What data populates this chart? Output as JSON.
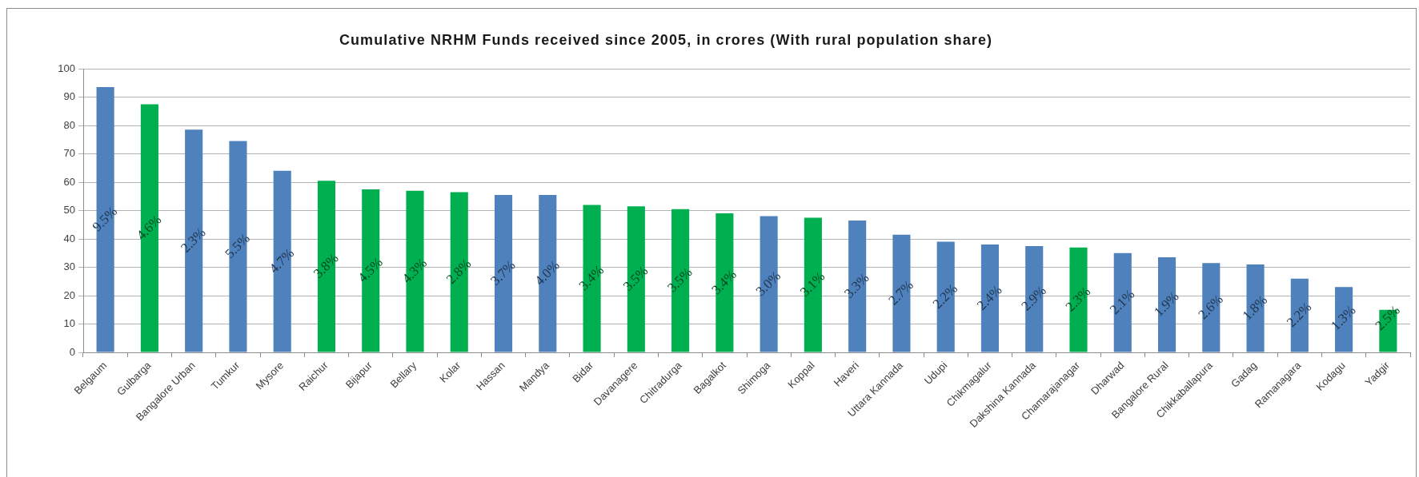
{
  "chart_data": {
    "type": "bar",
    "title": "Cumulative NRHM Funds received since 2005, in crores (With rural population share)",
    "categories": [
      "Belgaum",
      "Gulbarga",
      "Bangalore Urban",
      "Tumkur",
      "Mysore",
      "Raichur",
      "Bijapur",
      "Bellary",
      "Kolar",
      "Hassan",
      "Mandya",
      "Bidar",
      "Davanagere",
      "Chitradurga",
      "Bagalkot",
      "Shimoga",
      "Koppal",
      "Haveri",
      "Uttara Kannada",
      "Udupi",
      "Chikmagalur",
      "Dakshina Kannada",
      "Chamarajanagar",
      "Dharwad",
      "Bangalore Rural",
      "Chikkaballapura",
      "Gadag",
      "Ramanagara",
      "Kodagu",
      "Yadgir"
    ],
    "values": [
      93.5,
      87.5,
      78.5,
      74.5,
      64,
      60.5,
      57.5,
      57,
      56.5,
      55.5,
      55.5,
      52,
      51.5,
      50.5,
      49,
      48,
      47.5,
      46.5,
      41.5,
      39,
      38,
      37.5,
      37,
      35,
      33.5,
      31.5,
      31,
      26,
      23,
      15
    ],
    "colors": [
      "#4f81bd",
      "#00b050",
      "#4f81bd",
      "#4f81bd",
      "#4f81bd",
      "#00b050",
      "#00b050",
      "#00b050",
      "#00b050",
      "#4f81bd",
      "#4f81bd",
      "#00b050",
      "#00b050",
      "#00b050",
      "#00b050",
      "#4f81bd",
      "#00b050",
      "#4f81bd",
      "#4f81bd",
      "#4f81bd",
      "#4f81bd",
      "#4f81bd",
      "#00b050",
      "#4f81bd",
      "#4f81bd",
      "#4f81bd",
      "#4f81bd",
      "#4f81bd",
      "#4f81bd",
      "#00b050"
    ],
    "annotations": [
      "9.5%",
      "4.6%",
      "2.3%",
      "5.5%",
      "4.7%",
      "3.8%",
      "4.5%",
      "4.3%",
      "2.8%",
      "3.7%",
      "4.0%",
      "3.4%",
      "3.5%",
      "3.5%",
      "3.4%",
      "3.0%",
      "3.1%",
      "3.3%",
      "2.7%",
      "2.2%",
      "2.4%",
      "2.9%",
      "2.3%",
      "2.1%",
      "1.9%",
      "2.6%",
      "1.8%",
      "2.2%",
      "1.3%",
      "2.5%"
    ],
    "ylim": [
      0,
      100
    ],
    "yticks": [
      0,
      10,
      20,
      30,
      40,
      50,
      60,
      70,
      80,
      90,
      100
    ],
    "grid": "y"
  }
}
